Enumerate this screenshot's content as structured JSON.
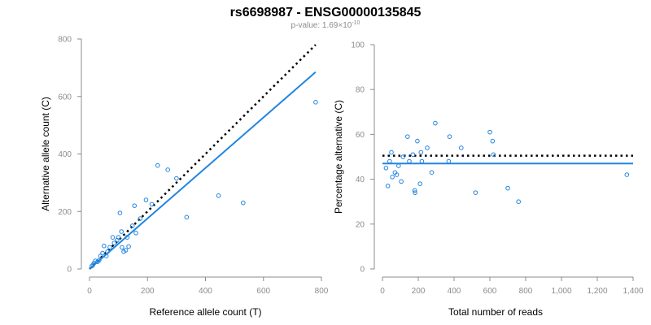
{
  "title": "rs6698987 - ENSG00000135845",
  "subtitle": {
    "prefix": "p-value: 1.69×10",
    "exponent": "-10"
  },
  "colors": {
    "points": "#2185e0",
    "fit_line": "#2185e0",
    "reference_line": "#000000",
    "axis": "#8c8c8c"
  },
  "chart_data": [
    {
      "type": "scatter",
      "xlabel": "Reference allele count (T)",
      "ylabel": "Alternative allele count (C)",
      "xlim": [
        0,
        800
      ],
      "ylim": [
        0,
        800
      ],
      "xticks": [
        0,
        200,
        400,
        600,
        800
      ],
      "yticks": [
        0,
        200,
        400,
        600,
        800
      ],
      "xtick_labels": [
        "0",
        "200",
        "400",
        "600",
        "800"
      ],
      "ytick_labels": [
        "0",
        "200",
        "400",
        "600",
        "800"
      ],
      "points": [
        [
          8,
          10
        ],
        [
          12,
          14
        ],
        [
          15,
          20
        ],
        [
          20,
          28
        ],
        [
          28,
          25
        ],
        [
          33,
          30
        ],
        [
          38,
          45
        ],
        [
          45,
          55
        ],
        [
          50,
          80
        ],
        [
          58,
          45
        ],
        [
          62,
          60
        ],
        [
          70,
          75
        ],
        [
          80,
          110
        ],
        [
          85,
          90
        ],
        [
          95,
          100
        ],
        [
          100,
          110
        ],
        [
          105,
          195
        ],
        [
          110,
          130
        ],
        [
          112,
          75
        ],
        [
          118,
          60
        ],
        [
          125,
          65
        ],
        [
          130,
          110
        ],
        [
          135,
          78
        ],
        [
          148,
          150
        ],
        [
          155,
          220
        ],
        [
          160,
          125
        ],
        [
          175,
          175
        ],
        [
          195,
          240
        ],
        [
          215,
          225
        ],
        [
          235,
          360
        ],
        [
          270,
          345
        ],
        [
          300,
          315
        ],
        [
          335,
          180
        ],
        [
          445,
          255
        ],
        [
          530,
          230
        ],
        [
          780,
          580
        ]
      ],
      "reference_line": {
        "style": "dotted",
        "from": [
          0,
          0
        ],
        "to": [
          780,
          780
        ]
      },
      "fit_line": {
        "style": "solid",
        "from": [
          0,
          0
        ],
        "to": [
          780,
          685
        ]
      },
      "grid": false
    },
    {
      "type": "scatter",
      "xlabel": "Total number of reads",
      "ylabel": "Percentage alternative (C)",
      "xlim": [
        0,
        1400
      ],
      "ylim": [
        0,
        100
      ],
      "xticks": [
        0,
        200,
        400,
        600,
        800,
        1000,
        1200,
        1400
      ],
      "yticks": [
        0,
        20,
        40,
        60,
        80,
        100
      ],
      "xtick_labels": [
        "0",
        "200",
        "400",
        "600",
        "800",
        "1,000",
        "1,200",
        "1,400"
      ],
      "ytick_labels": [
        "0",
        "20",
        "40",
        "60",
        "80",
        "100"
      ],
      "points": [
        [
          20,
          45
        ],
        [
          30,
          37
        ],
        [
          40,
          48
        ],
        [
          50,
          52
        ],
        [
          55,
          41
        ],
        [
          70,
          43
        ],
        [
          80,
          42
        ],
        [
          90,
          46
        ],
        [
          105,
          39
        ],
        [
          115,
          50
        ],
        [
          140,
          59
        ],
        [
          150,
          48
        ],
        [
          170,
          51
        ],
        [
          180,
          35
        ],
        [
          182,
          34
        ],
        [
          195,
          57
        ],
        [
          210,
          38
        ],
        [
          215,
          52
        ],
        [
          220,
          48
        ],
        [
          250,
          54
        ],
        [
          275,
          43
        ],
        [
          295,
          65
        ],
        [
          370,
          48
        ],
        [
          375,
          59
        ],
        [
          440,
          54
        ],
        [
          520,
          34
        ],
        [
          600,
          61
        ],
        [
          615,
          57
        ],
        [
          620,
          51
        ],
        [
          700,
          36
        ],
        [
          760,
          30
        ],
        [
          1365,
          42
        ]
      ],
      "reference_line": {
        "style": "dotted",
        "y": 50.5
      },
      "fit_line": {
        "style": "solid",
        "y": 47
      },
      "grid": false
    }
  ]
}
